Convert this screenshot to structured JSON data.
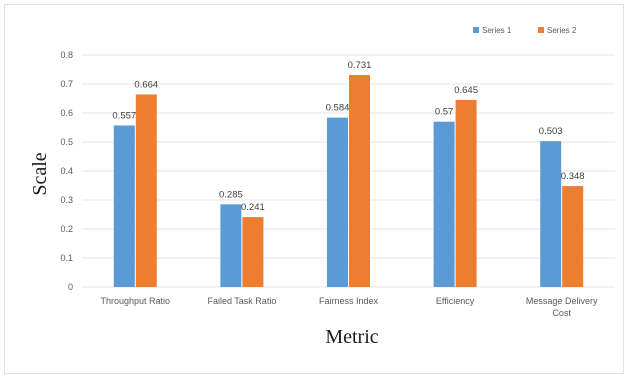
{
  "colors": {
    "series_1": "#5b9bd5",
    "series_2": "#ed7d31",
    "gridline": "#e6e6e6",
    "frame_border": "#e2e2e2"
  },
  "chart_data": {
    "type": "bar",
    "title": "",
    "xlabel": "Metric",
    "ylabel": "Scale",
    "categories": [
      [
        "Throughput Ratio"
      ],
      [
        "Failed Task Ratio"
      ],
      [
        "Fairness Index"
      ],
      [
        "Efficiency"
      ],
      [
        "Message Delivery",
        "Cost"
      ]
    ],
    "series": [
      {
        "name": "Series 1",
        "values": [
          0.557,
          0.285,
          0.584,
          0.57,
          0.503
        ],
        "labels": [
          "0.557",
          "0.285",
          "0.584",
          "0.57",
          "0.503"
        ]
      },
      {
        "name": "Series 2",
        "values": [
          0.664,
          0.241,
          0.731,
          0.645,
          0.348
        ],
        "labels": [
          "0.664",
          "0.241",
          "0.731",
          "0.645",
          "0.348"
        ]
      }
    ],
    "yticks": [
      "0",
      "0.1",
      "0.2",
      "0.3",
      "0.4",
      "0.5",
      "0.6",
      "0.7",
      "0.8"
    ],
    "ylim": [
      0,
      0.8
    ],
    "grid": true,
    "legend_position": "top-right"
  }
}
